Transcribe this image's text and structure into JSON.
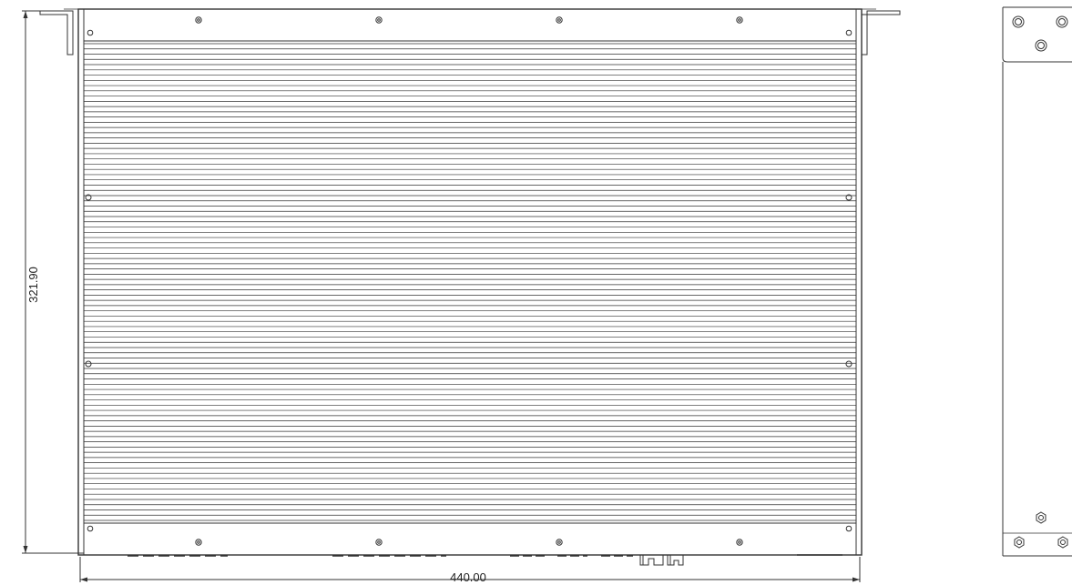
{
  "dimensions": {
    "height_label": "321.90",
    "width_label": "440.00"
  },
  "colors": {
    "line": "#333333",
    "background": "#ffffff"
  },
  "top_view": {
    "fin_count": 92
  }
}
